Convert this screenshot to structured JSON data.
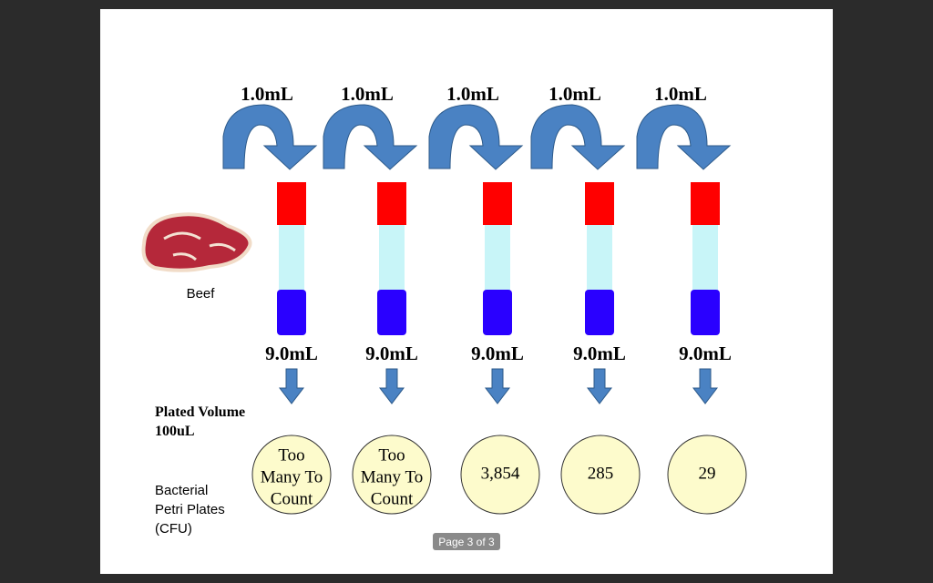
{
  "transfers": [
    "1.0mL",
    "1.0mL",
    "1.0mL",
    "1.0mL",
    "1.0mL"
  ],
  "tube_volumes": [
    "9.0mL",
    "9.0mL",
    "9.0mL",
    "9.0mL",
    "9.0mL"
  ],
  "sample_label": "Beef",
  "plated_volume": [
    "Plated Volume",
    "100uL"
  ],
  "plates_label": [
    "Bacterial",
    "Petri Plates",
    "(CFU)"
  ],
  "plates": [
    [
      "Too",
      "Many To",
      "Count"
    ],
    [
      "Too",
      "Many To",
      "Count"
    ],
    [
      "3,854"
    ],
    [
      "285"
    ],
    [
      "29"
    ]
  ],
  "page_indicator": "Page 3 of 3"
}
